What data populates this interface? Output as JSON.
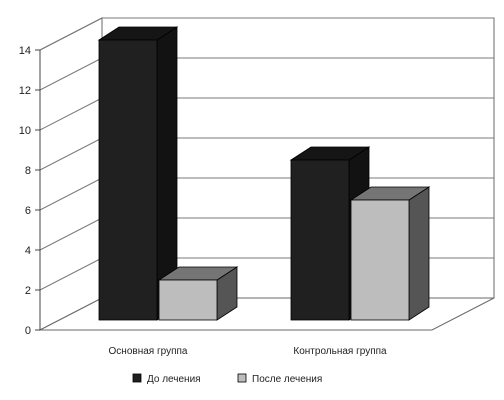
{
  "chart_data": {
    "type": "bar",
    "categories": [
      "Основная группа",
      "Контрольная группа"
    ],
    "series": [
      {
        "name": "До лечения",
        "values": [
          14,
          8
        ],
        "color": "#202020"
      },
      {
        "name": "После лечения",
        "values": [
          2,
          6
        ],
        "color": "#bdbdbd"
      }
    ],
    "ylim": [
      0,
      14
    ],
    "yticks": [
      0,
      2,
      4,
      6,
      8,
      10,
      12,
      14
    ],
    "grid": true,
    "style": "3d",
    "legend": "bottom"
  }
}
